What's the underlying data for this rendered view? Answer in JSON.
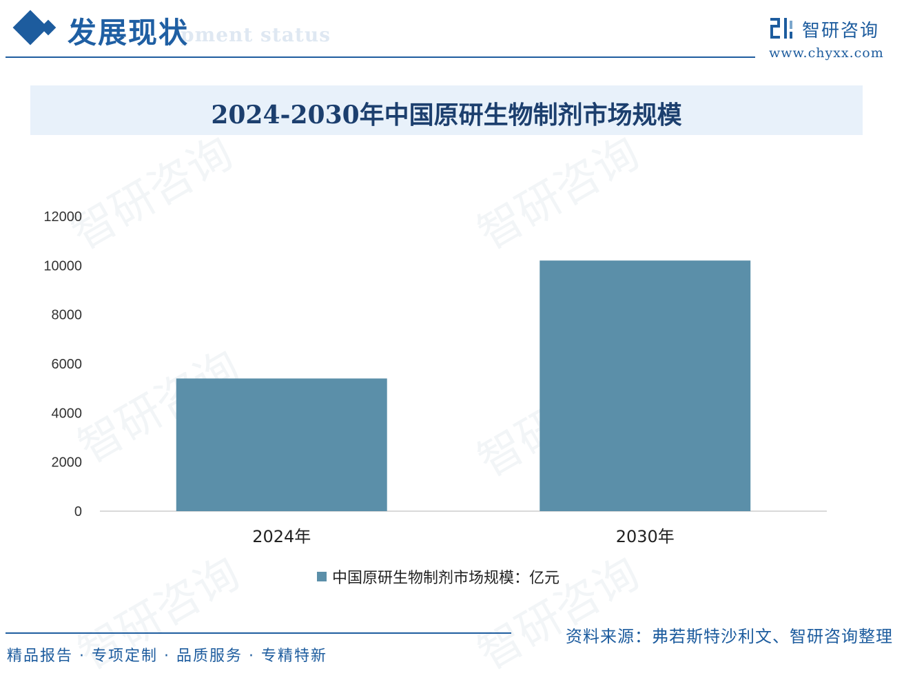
{
  "header": {
    "section_title": "发展现状",
    "section_subtitle": "pment status",
    "brand_name": "智研咨询",
    "brand_url": "www.chyxx.com",
    "accent_color": "#1d5c9e"
  },
  "watermark_text": "智研咨询",
  "chart_data": {
    "type": "bar",
    "title": "2024-2030年中国原研生物制剂市场规模",
    "categories": [
      "2024年",
      "2030年"
    ],
    "series": [
      {
        "name": "中国原研生物制剂市场规模：亿元",
        "values": [
          5400,
          10200
        ],
        "color": "#5b8fa9"
      }
    ],
    "ylim": [
      0,
      12000
    ],
    "yticks": [
      0,
      2000,
      4000,
      6000,
      8000,
      10000,
      12000
    ],
    "xlabel": "",
    "ylabel": "",
    "grid": false,
    "legend_position": "bottom"
  },
  "footer": {
    "tags": "精品报告 · 专项定制 · 品质服务 · 专精特新",
    "source": "资料来源：弗若斯特沙利文、智研咨询整理"
  }
}
